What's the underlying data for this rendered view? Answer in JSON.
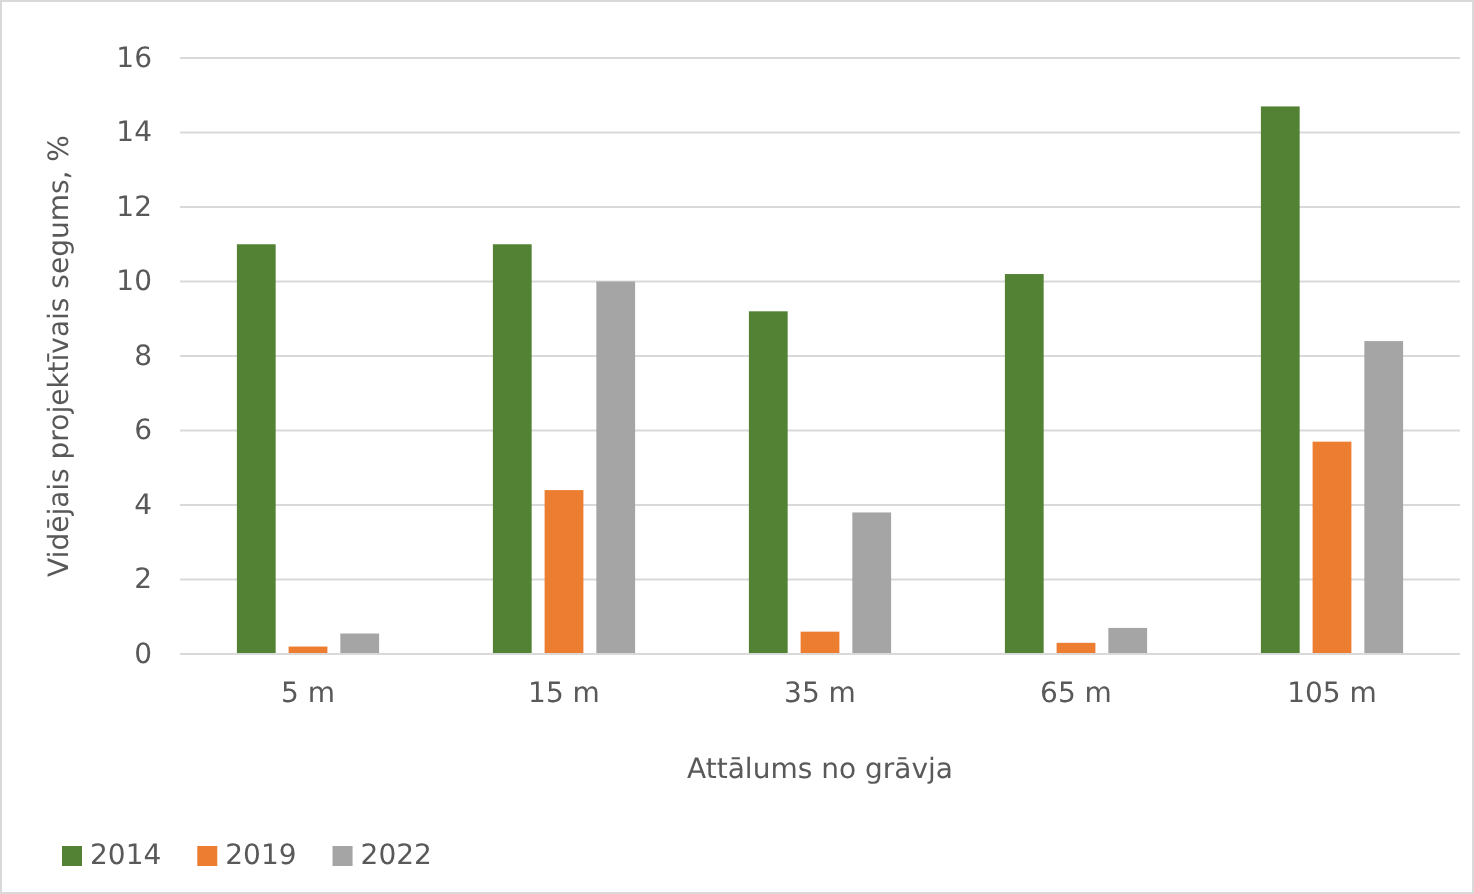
{
  "chart_data": {
    "type": "bar",
    "xlabel": "Attālums no grāvja",
    "ylabel": "Vidējais projektīvais segums, %",
    "categories": [
      "5 m",
      "15 m",
      "35 m",
      "65 m",
      "105 m"
    ],
    "series": [
      {
        "name": "2014",
        "color": "#548235",
        "values": [
          11,
          11,
          9.2,
          10.2,
          14.7
        ]
      },
      {
        "name": "2019",
        "color": "#ed7d31",
        "values": [
          0.2,
          4.4,
          0.6,
          0.3,
          5.7
        ]
      },
      {
        "name": "2022",
        "color": "#a5a5a5",
        "values": [
          0.55,
          10,
          3.8,
          0.7,
          8.4
        ]
      }
    ],
    "ylim": [
      0,
      16
    ],
    "yticks": [
      0,
      2,
      4,
      6,
      8,
      10,
      12,
      14,
      16
    ],
    "grid": "y",
    "legend": "bottom left"
  }
}
